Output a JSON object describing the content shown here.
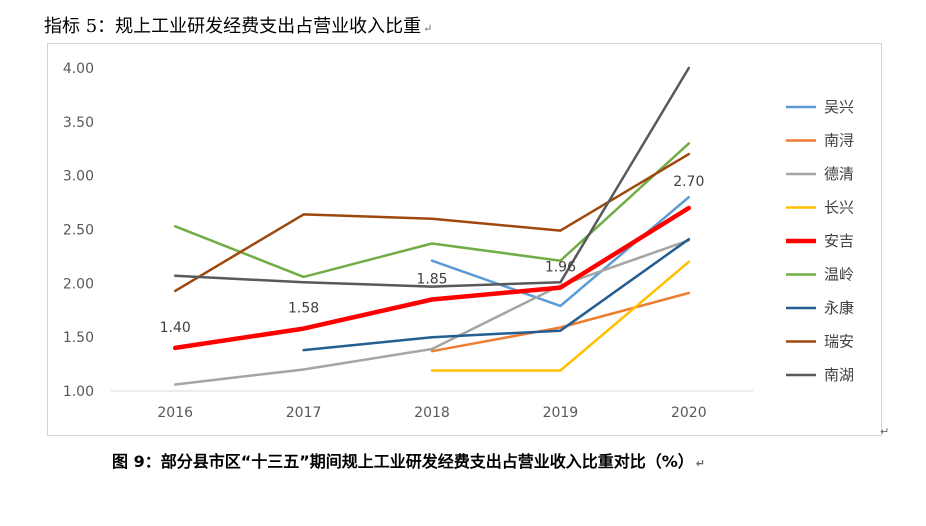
{
  "document": {
    "heading": "指标 5：规上工业研发经费支出占营业收入比重",
    "caption": "图 9：部分县市区“十三五”期间规上工业研发经费支出占营业收入比重对比（%）",
    "para_mark": "↵"
  },
  "chart_data": {
    "type": "line",
    "title": "",
    "xlabel": "",
    "ylabel": "",
    "categories": [
      "2016",
      "2017",
      "2018",
      "2019",
      "2020"
    ],
    "ylim": [
      1.0,
      4.0
    ],
    "yticks": [
      "1.00",
      "1.50",
      "2.00",
      "2.50",
      "3.00",
      "3.50",
      "4.00"
    ],
    "grid": false,
    "legend": "right",
    "series": [
      {
        "name": "吴兴",
        "color": "#5B9BD5",
        "values": [
          null,
          null,
          2.21,
          1.79,
          2.8
        ]
      },
      {
        "name": "南浔",
        "color": "#ED7D31",
        "values": [
          null,
          null,
          1.37,
          1.59,
          1.91
        ]
      },
      {
        "name": "德清",
        "color": "#A5A5A5",
        "values": [
          1.06,
          1.2,
          1.39,
          1.98,
          2.4
        ]
      },
      {
        "name": "长兴",
        "color": "#FFC000",
        "values": [
          null,
          null,
          1.19,
          1.19,
          2.2
        ]
      },
      {
        "name": "安吉",
        "color": "#FF0000",
        "values": [
          1.4,
          1.58,
          1.85,
          1.96,
          2.7
        ],
        "labels": [
          "1.40",
          "1.58",
          "1.85",
          "1.96",
          "2.70"
        ]
      },
      {
        "name": "温岭",
        "color": "#70AD47",
        "values": [
          2.53,
          2.06,
          2.37,
          2.21,
          3.3
        ]
      },
      {
        "name": "永康",
        "color": "#255E91",
        "values": [
          null,
          1.38,
          1.5,
          1.56,
          2.41
        ]
      },
      {
        "name": "瑞安",
        "color": "#9E480E",
        "values": [
          1.93,
          2.64,
          2.6,
          2.49,
          3.2
        ]
      },
      {
        "name": "南湖",
        "color": "#595959",
        "values": [
          2.07,
          2.01,
          1.97,
          2.01,
          4.0
        ]
      }
    ]
  }
}
